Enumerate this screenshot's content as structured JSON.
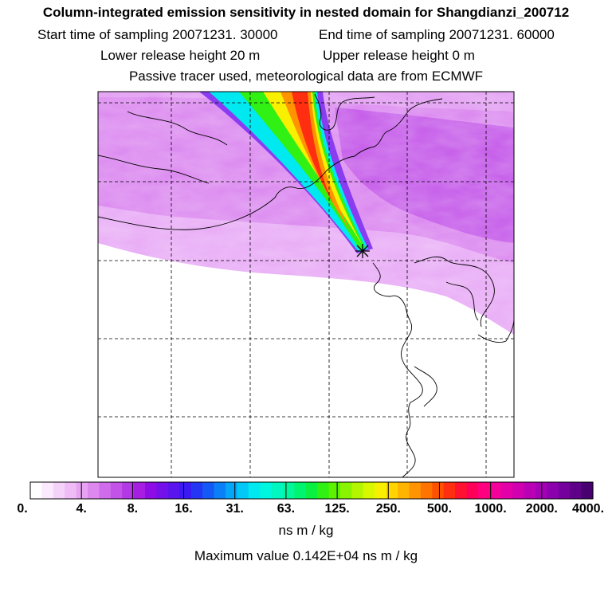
{
  "header": {
    "title": "Column-integrated emission sensitivity in nested domain for Shangdianzi_200712",
    "start_label": "Start time of sampling 20071231. 30000",
    "end_label": "End time of sampling 20071231. 60000",
    "lower_label": "Lower release height   20 m",
    "upper_label": "Upper release height    0 m",
    "tracer_line": "Passive tracer used, meteorological data are from ECMWF"
  },
  "colorbar": {
    "tick_labels": [
      "0.",
      "4.",
      "8.",
      "16.",
      "31.",
      "63.",
      "125.",
      "250.",
      "500.",
      "1000.",
      "2000.",
      "4000."
    ],
    "colors": [
      "#ffffff",
      "#fbeafd",
      "#f5d2fa",
      "#efbcf6",
      "#e6a3f2",
      "#dc88ee",
      "#d06ceb",
      "#c252e8",
      "#b338e6",
      "#a51ee2",
      "#8e0ce6",
      "#7410ea",
      "#5a14ee",
      "#3c18f2",
      "#2436f4",
      "#1459f6",
      "#0a7ff7",
      "#05a5f8",
      "#02c8f7",
      "#00e8f0",
      "#00f7df",
      "#00f7c0",
      "#00f79c",
      "#00f46f",
      "#0af040",
      "#30f014",
      "#5cf200",
      "#8af400",
      "#b4f600",
      "#d8f800",
      "#f8f000",
      "#ffd400",
      "#ffb400",
      "#ff9400",
      "#ff7400",
      "#ff5200",
      "#ff2e10",
      "#ff1230",
      "#ff0058",
      "#ff0080",
      "#f4009a",
      "#e400a8",
      "#d000b0",
      "#ba00b4",
      "#a400b4",
      "#8c00ae",
      "#74009e",
      "#5e0088",
      "#480070"
    ],
    "units": "ns m / kg",
    "max_value": "Maximum value  0.142E+04 ns m / kg"
  },
  "map": {
    "receptor": "Shangdianzi",
    "background_color": "#d98cf0",
    "plume_colors": [
      "#00e8f0",
      "#30f014",
      "#f8f000",
      "#ff9400",
      "#ff2e10"
    ]
  }
}
